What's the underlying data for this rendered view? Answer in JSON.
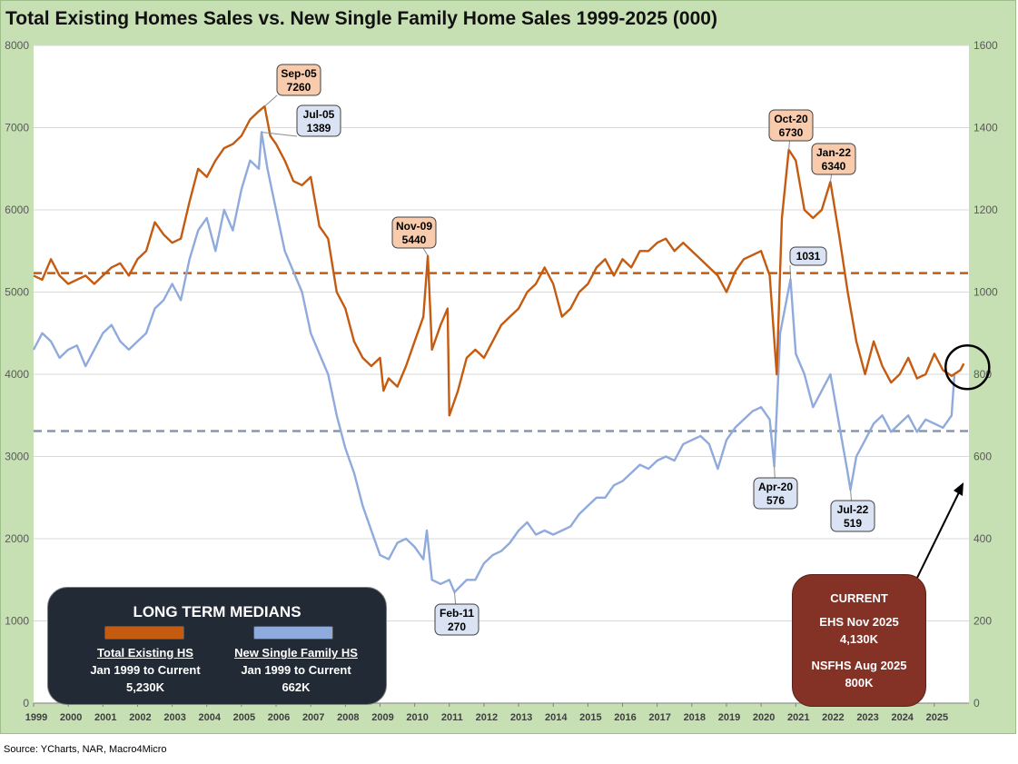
{
  "title": "Total Existing Homes Sales vs. New Single Family Home Sales 1999-2025 (000)",
  "source": "Source: YCharts, NAR, Macro4Micro",
  "colors": {
    "existing": "#c55a11",
    "new_single_family": "#8faadc",
    "background": "#c6e0b4",
    "medians_panel": "#222a35",
    "current_panel": "#843126",
    "existing_callout_fill": "#f8cbad",
    "new_callout_fill": "#dae3f3"
  },
  "chart_data": {
    "type": "line",
    "title": "Total Existing Homes Sales vs. New Single Family Home Sales 1999-2025 (000)",
    "x_ticks": [
      "1999",
      "2000",
      "2001",
      "2002",
      "2003",
      "2004",
      "2005",
      "2006",
      "2007",
      "2008",
      "2009",
      "2010",
      "2011",
      "2012",
      "2013",
      "2014",
      "2015",
      "2016",
      "2017",
      "2018",
      "2019",
      "2020",
      "2021",
      "2022",
      "2023",
      "2024",
      "2025"
    ],
    "y_left": {
      "min": 0,
      "max": 8000,
      "ticks": [
        0,
        1000,
        2000,
        3000,
        4000,
        5000,
        6000,
        7000,
        8000
      ]
    },
    "y_right": {
      "min": 0,
      "max": 1600,
      "ticks": [
        0,
        200,
        400,
        600,
        800,
        1000,
        1200,
        1400,
        1600
      ]
    },
    "grid": "horizontal",
    "series": [
      {
        "axis": "left",
        "color": "#c55a11",
        "points": [
          [
            1999.0,
            5200
          ],
          [
            1999.25,
            5150
          ],
          [
            1999.5,
            5400
          ],
          [
            1999.75,
            5200
          ],
          [
            2000.0,
            5100
          ],
          [
            2000.25,
            5150
          ],
          [
            2000.5,
            5200
          ],
          [
            2000.75,
            5100
          ],
          [
            2001.0,
            5200
          ],
          [
            2001.25,
            5300
          ],
          [
            2001.5,
            5350
          ],
          [
            2001.75,
            5200
          ],
          [
            2002.0,
            5400
          ],
          [
            2002.25,
            5500
          ],
          [
            2002.5,
            5850
          ],
          [
            2002.75,
            5700
          ],
          [
            2003.0,
            5600
          ],
          [
            2003.25,
            5650
          ],
          [
            2003.5,
            6100
          ],
          [
            2003.75,
            6500
          ],
          [
            2004.0,
            6400
          ],
          [
            2004.25,
            6600
          ],
          [
            2004.5,
            6750
          ],
          [
            2004.75,
            6800
          ],
          [
            2005.0,
            6900
          ],
          [
            2005.25,
            7100
          ],
          [
            2005.5,
            7200
          ],
          [
            2005.67,
            7260
          ],
          [
            2005.83,
            6900
          ],
          [
            2006.0,
            6800
          ],
          [
            2006.25,
            6600
          ],
          [
            2006.5,
            6350
          ],
          [
            2006.75,
            6300
          ],
          [
            2007.0,
            6400
          ],
          [
            2007.25,
            5800
          ],
          [
            2007.5,
            5650
          ],
          [
            2007.75,
            5000
          ],
          [
            2008.0,
            4800
          ],
          [
            2008.25,
            4400
          ],
          [
            2008.5,
            4200
          ],
          [
            2008.75,
            4100
          ],
          [
            2009.0,
            4200
          ],
          [
            2009.1,
            3800
          ],
          [
            2009.25,
            3950
          ],
          [
            2009.5,
            3850
          ],
          [
            2009.75,
            4100
          ],
          [
            2010.0,
            4400
          ],
          [
            2010.25,
            4700
          ],
          [
            2010.38,
            5440
          ],
          [
            2010.5,
            4300
          ],
          [
            2010.75,
            4600
          ],
          [
            2010.95,
            4800
          ],
          [
            2011.0,
            3500
          ],
          [
            2011.25,
            3800
          ],
          [
            2011.5,
            4200
          ],
          [
            2011.75,
            4300
          ],
          [
            2012.0,
            4200
          ],
          [
            2012.25,
            4400
          ],
          [
            2012.5,
            4600
          ],
          [
            2012.75,
            4700
          ],
          [
            2013.0,
            4800
          ],
          [
            2013.25,
            5000
          ],
          [
            2013.5,
            5100
          ],
          [
            2013.75,
            5300
          ],
          [
            2014.0,
            5100
          ],
          [
            2014.25,
            4700
          ],
          [
            2014.5,
            4800
          ],
          [
            2014.75,
            5000
          ],
          [
            2015.0,
            5100
          ],
          [
            2015.25,
            5300
          ],
          [
            2015.5,
            5400
          ],
          [
            2015.75,
            5200
          ],
          [
            2016.0,
            5400
          ],
          [
            2016.25,
            5300
          ],
          [
            2016.5,
            5500
          ],
          [
            2016.75,
            5500
          ],
          [
            2017.0,
            5600
          ],
          [
            2017.25,
            5650
          ],
          [
            2017.5,
            5500
          ],
          [
            2017.75,
            5600
          ],
          [
            2018.0,
            5500
          ],
          [
            2018.25,
            5400
          ],
          [
            2018.5,
            5300
          ],
          [
            2018.75,
            5200
          ],
          [
            2019.0,
            5000
          ],
          [
            2019.25,
            5250
          ],
          [
            2019.5,
            5400
          ],
          [
            2019.75,
            5450
          ],
          [
            2020.0,
            5500
          ],
          [
            2020.25,
            5200
          ],
          [
            2020.45,
            4000
          ],
          [
            2020.6,
            5900
          ],
          [
            2020.8,
            6730
          ],
          [
            2021.0,
            6600
          ],
          [
            2021.25,
            6000
          ],
          [
            2021.5,
            5900
          ],
          [
            2021.75,
            6000
          ],
          [
            2022.0,
            6340
          ],
          [
            2022.25,
            5700
          ],
          [
            2022.5,
            5000
          ],
          [
            2022.75,
            4400
          ],
          [
            2023.0,
            4000
          ],
          [
            2023.25,
            4400
          ],
          [
            2023.5,
            4100
          ],
          [
            2023.75,
            3900
          ],
          [
            2024.0,
            4000
          ],
          [
            2024.25,
            4200
          ],
          [
            2024.5,
            3950
          ],
          [
            2024.75,
            4000
          ],
          [
            2025.0,
            4250
          ],
          [
            2025.25,
            4050
          ],
          [
            2025.5,
            3980
          ],
          [
            2025.75,
            4050
          ],
          [
            2025.85,
            4130
          ]
        ]
      },
      {
        "axis": "right",
        "color": "#8faadc",
        "points": [
          [
            1999.0,
            860
          ],
          [
            1999.25,
            900
          ],
          [
            1999.5,
            880
          ],
          [
            1999.75,
            840
          ],
          [
            2000.0,
            860
          ],
          [
            2000.25,
            870
          ],
          [
            2000.5,
            820
          ],
          [
            2000.75,
            860
          ],
          [
            2001.0,
            900
          ],
          [
            2001.25,
            920
          ],
          [
            2001.5,
            880
          ],
          [
            2001.75,
            860
          ],
          [
            2002.0,
            880
          ],
          [
            2002.25,
            900
          ],
          [
            2002.5,
            960
          ],
          [
            2002.75,
            980
          ],
          [
            2003.0,
            1020
          ],
          [
            2003.25,
            980
          ],
          [
            2003.5,
            1080
          ],
          [
            2003.75,
            1150
          ],
          [
            2004.0,
            1180
          ],
          [
            2004.25,
            1100
          ],
          [
            2004.5,
            1200
          ],
          [
            2004.75,
            1150
          ],
          [
            2005.0,
            1250
          ],
          [
            2005.25,
            1320
          ],
          [
            2005.5,
            1300
          ],
          [
            2005.58,
            1389
          ],
          [
            2005.75,
            1300
          ],
          [
            2006.0,
            1200
          ],
          [
            2006.25,
            1100
          ],
          [
            2006.5,
            1050
          ],
          [
            2006.75,
            1000
          ],
          [
            2007.0,
            900
          ],
          [
            2007.25,
            850
          ],
          [
            2007.5,
            800
          ],
          [
            2007.75,
            700
          ],
          [
            2008.0,
            620
          ],
          [
            2008.25,
            560
          ],
          [
            2008.5,
            480
          ],
          [
            2008.75,
            420
          ],
          [
            2009.0,
            360
          ],
          [
            2009.25,
            350
          ],
          [
            2009.5,
            390
          ],
          [
            2009.75,
            400
          ],
          [
            2010.0,
            380
          ],
          [
            2010.25,
            350
          ],
          [
            2010.35,
            420
          ],
          [
            2010.5,
            300
          ],
          [
            2010.75,
            290
          ],
          [
            2011.0,
            300
          ],
          [
            2011.15,
            270
          ],
          [
            2011.5,
            300
          ],
          [
            2011.75,
            300
          ],
          [
            2012.0,
            340
          ],
          [
            2012.25,
            360
          ],
          [
            2012.5,
            370
          ],
          [
            2012.75,
            390
          ],
          [
            2013.0,
            420
          ],
          [
            2013.25,
            440
          ],
          [
            2013.5,
            410
          ],
          [
            2013.75,
            420
          ],
          [
            2014.0,
            410
          ],
          [
            2014.25,
            420
          ],
          [
            2014.5,
            430
          ],
          [
            2014.75,
            460
          ],
          [
            2015.0,
            480
          ],
          [
            2015.25,
            500
          ],
          [
            2015.5,
            500
          ],
          [
            2015.75,
            530
          ],
          [
            2016.0,
            540
          ],
          [
            2016.25,
            560
          ],
          [
            2016.5,
            580
          ],
          [
            2016.75,
            570
          ],
          [
            2017.0,
            590
          ],
          [
            2017.25,
            600
          ],
          [
            2017.5,
            590
          ],
          [
            2017.75,
            630
          ],
          [
            2018.0,
            640
          ],
          [
            2018.25,
            650
          ],
          [
            2018.5,
            630
          ],
          [
            2018.75,
            570
          ],
          [
            2019.0,
            640
          ],
          [
            2019.25,
            670
          ],
          [
            2019.5,
            690
          ],
          [
            2019.75,
            710
          ],
          [
            2020.0,
            720
          ],
          [
            2020.25,
            690
          ],
          [
            2020.38,
            576
          ],
          [
            2020.55,
            900
          ],
          [
            2020.85,
            1031
          ],
          [
            2021.0,
            850
          ],
          [
            2021.25,
            800
          ],
          [
            2021.5,
            720
          ],
          [
            2021.75,
            760
          ],
          [
            2022.0,
            800
          ],
          [
            2022.25,
            680
          ],
          [
            2022.5,
            560
          ],
          [
            2022.58,
            519
          ],
          [
            2022.75,
            600
          ],
          [
            2023.0,
            640
          ],
          [
            2023.25,
            680
          ],
          [
            2023.5,
            700
          ],
          [
            2023.75,
            660
          ],
          [
            2024.0,
            680
          ],
          [
            2024.25,
            700
          ],
          [
            2024.5,
            660
          ],
          [
            2024.75,
            690
          ],
          [
            2025.0,
            680
          ],
          [
            2025.25,
            670
          ],
          [
            2025.5,
            700
          ],
          [
            2025.58,
            800
          ]
        ]
      }
    ],
    "reference_lines": [
      {
        "axis": "left",
        "value": 5230,
        "color": "#c55a11",
        "style": "dashed"
      },
      {
        "axis": "right",
        "value": 662,
        "color": "#8497b0",
        "style": "dashed"
      }
    ],
    "annotations": [
      {
        "series": "existing",
        "x": 2005.67,
        "y": 7260,
        "label": [
          "Sep-05",
          "7260"
        ]
      },
      {
        "series": "new",
        "x": 2005.58,
        "y": 1389,
        "label": [
          "Jul-05",
          "1389"
        ]
      },
      {
        "series": "existing",
        "x": 2010.38,
        "y": 5440,
        "label": [
          "Nov-09",
          "5440"
        ]
      },
      {
        "series": "existing",
        "x": 2020.8,
        "y": 6730,
        "label": [
          "Oct-20",
          "6730"
        ]
      },
      {
        "series": "existing",
        "x": 2022.0,
        "y": 6340,
        "label": [
          "Jan-22",
          "6340"
        ]
      },
      {
        "series": "new",
        "x": 2020.85,
        "y": 1031,
        "label": [
          "1031"
        ]
      },
      {
        "series": "new",
        "x": 2020.38,
        "y": 576,
        "label": [
          "Apr-20",
          "576"
        ]
      },
      {
        "series": "new",
        "x": 2022.58,
        "y": 519,
        "label": [
          "Jul-22",
          "519"
        ]
      },
      {
        "series": "new",
        "x": 2011.15,
        "y": 270,
        "label": [
          "Feb-11",
          "270"
        ]
      }
    ]
  },
  "medians_panel": {
    "title": "LONG TERM MEDIANS",
    "existing_heading": "Total Existing HS",
    "existing_period": "Jan 1999 to Current",
    "existing_value": "5,230K",
    "new_heading": "New Single Family HS",
    "new_period": "Jan 1999 to Current",
    "new_value": "662K"
  },
  "current_panel": {
    "title": "CURRENT",
    "ehs_label": "EHS Nov 2025",
    "ehs_value": "4,130K",
    "nsfhs_label": "NSFHS Aug 2025",
    "nsfhs_value": "800K"
  }
}
